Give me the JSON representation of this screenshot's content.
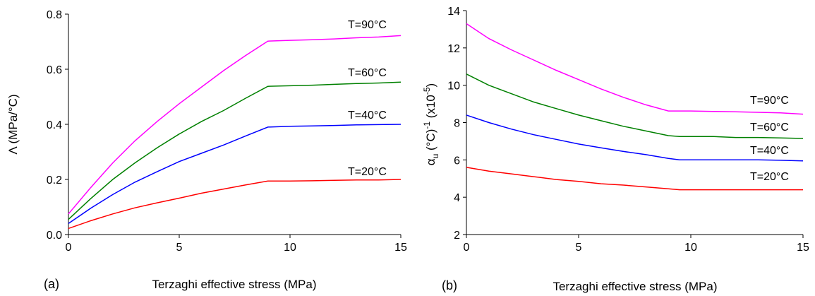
{
  "chart_data": [
    {
      "type": "line",
      "panel_label": "(a)",
      "xlabel": "Terzaghi effective stress (MPa)",
      "ylabel": "Λ (MPa/°C)",
      "xlim": [
        0,
        15
      ],
      "ylim": [
        0,
        0.8
      ],
      "xticks": [
        "0",
        "5",
        "10",
        "15"
      ],
      "yticks": [
        "0.0",
        "0.2",
        "0.4",
        "0.6",
        "0.8"
      ],
      "series": [
        {
          "name": "T=20°C",
          "color": "#ff0000",
          "x": [
            0,
            1,
            2,
            3,
            4,
            5,
            6,
            7,
            8,
            9,
            10,
            11,
            12,
            13,
            14,
            15
          ],
          "y": [
            0.022,
            0.05,
            0.075,
            0.097,
            0.115,
            0.132,
            0.15,
            0.165,
            0.18,
            0.194,
            0.194,
            0.195,
            0.197,
            0.198,
            0.198,
            0.2
          ]
        },
        {
          "name": "T=40°C",
          "color": "#0000ff",
          "x": [
            0,
            1,
            2,
            3,
            4,
            5,
            6,
            7,
            8,
            9,
            10,
            11,
            12,
            13,
            14,
            15
          ],
          "y": [
            0.04,
            0.095,
            0.145,
            0.19,
            0.228,
            0.265,
            0.295,
            0.325,
            0.358,
            0.39,
            0.393,
            0.394,
            0.396,
            0.398,
            0.399,
            0.4
          ]
        },
        {
          "name": "T=60°C",
          "color": "#008000",
          "x": [
            0,
            1,
            2,
            3,
            4,
            5,
            6,
            7,
            8,
            9,
            10,
            11,
            12,
            13,
            14,
            15
          ],
          "y": [
            0.055,
            0.13,
            0.2,
            0.26,
            0.315,
            0.365,
            0.41,
            0.45,
            0.495,
            0.538,
            0.54,
            0.542,
            0.545,
            0.548,
            0.55,
            0.553
          ]
        },
        {
          "name": "T=90°C",
          "color": "#ff00ff",
          "x": [
            0,
            1,
            2,
            3,
            4,
            5,
            6,
            7,
            8,
            9,
            10,
            11,
            12,
            13,
            14,
            15
          ],
          "y": [
            0.075,
            0.17,
            0.26,
            0.34,
            0.41,
            0.475,
            0.535,
            0.595,
            0.65,
            0.702,
            0.705,
            0.707,
            0.71,
            0.714,
            0.717,
            0.722
          ]
        }
      ]
    },
    {
      "type": "line",
      "panel_label": "(b)",
      "xlabel": "Terzaghi effective stress (MPa)",
      "ylabel_main": "α",
      "ylabel_sub": "u",
      "ylabel_mid": " (°C)",
      "ylabel_sup": "-1",
      "ylabel_tail": "  (x10",
      "ylabel_tail_sup": "-5",
      "ylabel_end": ")",
      "xlim": [
        0,
        15
      ],
      "ylim": [
        2,
        14
      ],
      "xticks": [
        "0",
        "5",
        "10",
        "15"
      ],
      "yticks": [
        "2",
        "4",
        "6",
        "8",
        "10",
        "12",
        "14"
      ],
      "series": [
        {
          "name": "T=20°C",
          "color": "#ff0000",
          "x": [
            0,
            1,
            2,
            3,
            4,
            5,
            6,
            7,
            8,
            9,
            9.5,
            10,
            11,
            12,
            13,
            14,
            15
          ],
          "y": [
            5.6,
            5.4,
            5.25,
            5.1,
            4.95,
            4.85,
            4.72,
            4.65,
            4.55,
            4.45,
            4.4,
            4.4,
            4.4,
            4.4,
            4.4,
            4.4,
            4.4
          ]
        },
        {
          "name": "T=40°C",
          "color": "#0000ff",
          "x": [
            0,
            1,
            2,
            3,
            4,
            5,
            6,
            7,
            8,
            9,
            9.5,
            10,
            11,
            12,
            13,
            14,
            15
          ],
          "y": [
            8.4,
            8.0,
            7.65,
            7.35,
            7.1,
            6.85,
            6.65,
            6.45,
            6.28,
            6.08,
            6.0,
            6.0,
            6.0,
            6.0,
            6.0,
            5.98,
            5.95
          ]
        },
        {
          "name": "T=60°C",
          "color": "#008000",
          "x": [
            0,
            1,
            2,
            3,
            4,
            5,
            6,
            7,
            8,
            9,
            9.5,
            10,
            11,
            12,
            13,
            14,
            15
          ],
          "y": [
            10.6,
            10.0,
            9.55,
            9.1,
            8.75,
            8.4,
            8.1,
            7.8,
            7.55,
            7.3,
            7.25,
            7.25,
            7.25,
            7.2,
            7.2,
            7.18,
            7.15
          ]
        },
        {
          "name": "T=90°C",
          "color": "#ff00ff",
          "x": [
            0,
            1,
            2,
            3,
            4,
            5,
            6,
            7,
            8,
            9,
            10,
            11,
            12,
            13,
            14,
            15
          ],
          "y": [
            13.3,
            12.5,
            11.9,
            11.35,
            10.8,
            10.3,
            9.8,
            9.35,
            8.95,
            8.62,
            8.62,
            8.6,
            8.58,
            8.55,
            8.52,
            8.45
          ]
        }
      ]
    }
  ]
}
